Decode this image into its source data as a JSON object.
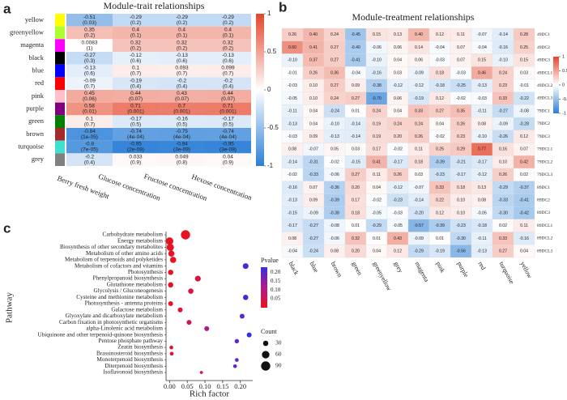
{
  "chart_data": [
    {
      "type": "heatmap",
      "label": "a",
      "title": "Module-trait relationships",
      "rows": [
        "yellow",
        "greenyellow",
        "magenta",
        "black",
        "blue",
        "red",
        "pink",
        "purple",
        "green",
        "brown",
        "turquoise",
        "grey"
      ],
      "columns": [
        "Berry fresh weight",
        "Glucose concentration",
        "Fructose concentration",
        "Hexose concentration"
      ],
      "values": [
        [
          -0.51,
          -0.29,
          -0.29,
          -0.29
        ],
        [
          0.35,
          0.4,
          0.4,
          0.4
        ],
        [
          0.0083,
          0.32,
          0.32,
          0.32
        ],
        [
          -0.27,
          -0.12,
          -0.13,
          -0.13
        ],
        [
          -0.13,
          0.1,
          0.093,
          0.099
        ],
        [
          -0.09,
          -0.19,
          -0.2,
          -0.2
        ],
        [
          0.45,
          0.44,
          0.43,
          0.44
        ],
        [
          0.58,
          0.71,
          0.7,
          0.71
        ],
        [
          0.1,
          -0.17,
          -0.16,
          -0.17
        ],
        [
          -0.84,
          -0.74,
          -0.75,
          -0.74
        ],
        [
          -0.8,
          -0.95,
          -0.94,
          -0.95
        ],
        [
          -0.2,
          0.033,
          0.049,
          0.04
        ]
      ],
      "cell_labels": [
        [
          "(0.03)",
          "(0.2)",
          "(0.2)",
          "(0.2)"
        ],
        [
          "(0.2)",
          "(0.1)",
          "(0.1)",
          "(0.1)"
        ],
        [
          "(1)",
          "(0.2)",
          "(0.2)",
          "(0.2)"
        ],
        [
          "(0.3)",
          "(0.6)",
          "(0.6)",
          "(0.6)"
        ],
        [
          "(0.6)",
          "(0.7)",
          "(0.7)",
          "(0.7)"
        ],
        [
          "(0.7)",
          "(0.4)",
          "(0.4)",
          "(0.4)"
        ],
        [
          "(0.06)",
          "(0.07)",
          "(0.07)",
          "(0.07)"
        ],
        [
          "(0.01)",
          "(0.001)",
          "(0.001)",
          "(0.001)"
        ],
        [
          "(0.7)",
          "(0.5)",
          "(0.5)",
          "(0.5)"
        ],
        [
          "(1e-05)",
          "(4e-04)",
          "(4e-04)",
          "(4e-04)"
        ],
        [
          "(7e-05)",
          "(2e-09)",
          "(3e-09)",
          "(3e-09)"
        ],
        [
          "(0.4)",
          "(0.9)",
          "(0.8)",
          "(0.9)"
        ]
      ],
      "clim": [
        -1,
        1
      ],
      "cticks": [
        -1,
        -0.5,
        0,
        0.5,
        1
      ]
    },
    {
      "type": "heatmap",
      "label": "b",
      "title": "Module-treatment relationships",
      "rows": [
        "49DC1",
        "49DC2",
        "49DC3",
        "49DCL1",
        "49DCL2",
        "49DCL3",
        "79DC1",
        "79DC2",
        "79DC3",
        "79DCL1",
        "79DCL2",
        "79DCL3",
        "89DC1",
        "89DC2",
        "89DC3",
        "89DCL1",
        "89DCL2",
        "89DCL3"
      ],
      "columns": [
        "black",
        "blue",
        "brown",
        "green",
        "greenyellow",
        "grey",
        "magenta",
        "pink",
        "purple",
        "red",
        "turquoise",
        "yellow"
      ],
      "values": [
        [
          0.26,
          0.4,
          0.24,
          -0.45,
          0.15,
          0.13,
          0.4,
          0.12,
          0.11,
          -0.07,
          -0.14,
          0.28
        ],
        [
          0.6,
          0.41,
          0.27,
          -0.4,
          -0.06,
          0.06,
          0.14,
          -0.04,
          0.07,
          -0.04,
          -0.16,
          0.25
        ],
        [
          -0.1,
          0.37,
          0.27,
          -0.41,
          -0.1,
          0.04,
          0.06,
          -0.03,
          0.07,
          0.15,
          -0.1,
          0.15
        ],
        [
          -0.01,
          0.26,
          0.36,
          -0.04,
          -0.16,
          0.03,
          -0.09,
          0.18,
          -0.03,
          0.46,
          0.24,
          0.03
        ],
        [
          -0.03,
          0.1,
          0.27,
          0.09,
          -0.38,
          -0.12,
          -0.12,
          -0.18,
          -0.25,
          -0.13,
          0.23,
          -0.01
        ],
        [
          -0.05,
          0.1,
          0.24,
          0.27,
          -0.7,
          0.06,
          -0.19,
          0.12,
          -0.02,
          -0.03,
          0.33,
          -0.22
        ],
        [
          -0.11,
          0.04,
          -0.24,
          0.01,
          0.24,
          0.04,
          0.33,
          0.27,
          0.35,
          -0.11,
          -0.27,
          -0.08
        ],
        [
          -0.13,
          0.04,
          -0.1,
          -0.14,
          0.19,
          0.24,
          0.24,
          0.04,
          0.26,
          0.08,
          -0.09,
          -0.28
        ],
        [
          -0.03,
          0.09,
          -0.13,
          -0.14,
          0.19,
          0.2,
          0.26,
          -0.02,
          0.23,
          -0.1,
          -0.26,
          0.12
        ],
        [
          0.08,
          -0.07,
          0.05,
          0.03,
          0.17,
          -0.02,
          0.11,
          0.25,
          0.29,
          0.77,
          0.16,
          0.07
        ],
        [
          -0.14,
          -0.31,
          -0.02,
          -0.15,
          0.41,
          -0.17,
          0.18,
          -0.39,
          -0.21,
          -0.17,
          0.1,
          0.42
        ],
        [
          -0.02,
          -0.33,
          -0.06,
          0.27,
          0.11,
          0.26,
          0.03,
          -0.23,
          -0.17,
          -0.12,
          0.26,
          0.02
        ],
        [
          -0.16,
          0.07,
          -0.36,
          0.2,
          0.04,
          -0.12,
          -0.07,
          0.33,
          0.18,
          0.13,
          -0.29,
          -0.37
        ],
        [
          -0.13,
          0.09,
          -0.39,
          0.17,
          -0.02,
          -0.23,
          -0.14,
          0.22,
          0.1,
          0.08,
          -0.33,
          -0.41
        ],
        [
          -0.15,
          -0.09,
          -0.38,
          0.18,
          -0.05,
          -0.03,
          -0.2,
          0.12,
          0.1,
          -0.05,
          -0.3,
          -0.42
        ],
        [
          -0.17,
          -0.27,
          -0.08,
          0.01,
          -0.29,
          -0.05,
          -0.57,
          -0.39,
          -0.23,
          -0.18,
          0.02,
          0.11
        ],
        [
          0.08,
          -0.27,
          -0.06,
          0.32,
          0.01,
          0.43,
          -0.09,
          0.01,
          -0.3,
          -0.11,
          0.33,
          -0.16
        ],
        [
          -0.04,
          -0.24,
          0.08,
          0.2,
          0.04,
          0.12,
          -0.29,
          -0.19,
          -0.56,
          -0.13,
          0.27,
          0.04
        ]
      ],
      "value_labels": [
        [
          "0.26",
          "0.40",
          "0.24",
          "-0.45",
          "0.15",
          "0.13",
          "0.40",
          "0.12",
          "0.11",
          "-0.07",
          "-0.14",
          "0.28"
        ],
        [
          "0.60",
          "0.41",
          "0.27",
          "-0.40",
          "-0.06",
          "0.06",
          "0.14",
          "-0.04",
          "0.07",
          "-0.04",
          "-0.16",
          "0.25"
        ],
        [
          "-0.10",
          "0.37",
          "0.27",
          "-0.41",
          "-0.10",
          "0.04",
          "0.06",
          "-0.03",
          "0.07",
          "0.15",
          "-0.10",
          "0.15"
        ],
        [
          "-0.01",
          "0.26",
          "0.36",
          "-0.04",
          "-0.16",
          "0.03",
          "-0.09",
          "0.18",
          "-0.03",
          "0.46",
          "0.24",
          "0.03"
        ],
        [
          "-0.03",
          "0.10",
          "0.27",
          "0.09",
          "-0.38",
          "-0.12",
          "-0.12",
          "-0.18",
          "-0.25",
          "-0.13",
          "0.23",
          "-0.01"
        ],
        [
          "-0.05",
          "0.10",
          "0.24",
          "0.27",
          "-0.70",
          "0.06",
          "-0.19",
          "0.12",
          "-0.02",
          "-0.03",
          "0.33",
          "-0.22"
        ],
        [
          "-0.11",
          "0.04",
          "-0.24",
          "0.01",
          "0.24",
          "0.04",
          "0.33",
          "0.27",
          "0.35",
          "-0.11",
          "-0.27",
          "-0.08"
        ],
        [
          "-0.13",
          "0.04",
          "-0.10",
          "-0.14",
          "0.19",
          "0.24",
          "0.24",
          "0.04",
          "0.26",
          "0.08",
          "-0.09",
          "-0.28"
        ],
        [
          "-0.03",
          "0.09",
          "-0.13",
          "-0.14",
          "0.19",
          "0.20",
          "0.26",
          "-0.02",
          "0.23",
          "-0.10",
          "-0.26",
          "0.12"
        ],
        [
          "0.08",
          "-0.07",
          "0.05",
          "0.03",
          "0.17",
          "-0.02",
          "0.11",
          "0.25",
          "0.29",
          "0.77",
          "0.16",
          "0.07"
        ],
        [
          "-0.14",
          "-0.31",
          "-0.02",
          "-0.15",
          "0.41",
          "-0.17",
          "0.18",
          "-0.39",
          "-0.21",
          "-0.17",
          "0.10",
          "0.42"
        ],
        [
          "-0.02",
          "-0.33",
          "-0.06",
          "0.27",
          "0.11",
          "0.26",
          "0.03",
          "-0.23",
          "-0.17",
          "-0.12",
          "0.26",
          "0.02"
        ],
        [
          "-0.16",
          "0.07",
          "-0.36",
          "0.20",
          "0.04",
          "-0.12",
          "-0.07",
          "0.33",
          "0.18",
          "0.13",
          "-0.29",
          "-0.37"
        ],
        [
          "-0.13",
          "0.09",
          "-0.39",
          "0.17",
          "-0.02",
          "-0.23",
          "-0.14",
          "0.22",
          "0.10",
          "0.08",
          "-0.33",
          "-0.41"
        ],
        [
          "-0.15",
          "-0.09",
          "-0.38",
          "0.18",
          "-0.05",
          "-0.03",
          "-0.20",
          "0.12",
          "0.10",
          "-0.05",
          "-0.30",
          "-0.42"
        ],
        [
          "-0.17",
          "-0.27",
          "-0.08",
          "0.01",
          "-0.29",
          "-0.05",
          "-0.57",
          "-0.39",
          "-0.23",
          "-0.18",
          "0.02",
          "0.11"
        ],
        [
          "0.08",
          "-0.27",
          "-0.06",
          "0.32",
          "0.01",
          "0.43",
          "-0.09",
          "0.01",
          "-0.30",
          "-0.11",
          "0.33",
          "-0.16"
        ],
        [
          "-0.04",
          "-0.24",
          "0.08",
          "0.20",
          "0.04",
          "0.12",
          "-0.29",
          "-0.19",
          "-0.56",
          "-0.13",
          "0.27",
          "0.04"
        ]
      ],
      "clim": [
        -1,
        1
      ],
      "cticks": [
        -1,
        -0.5,
        0,
        0.5,
        1
      ]
    },
    {
      "type": "dotplot",
      "label": "c",
      "x_label": "Rich factor",
      "y_label": "Pathway",
      "categories": [
        "Carbohydrate metabolism",
        "Energy metabolism",
        "Biosynthesis of other secondary metabolites",
        "Metabolism of other amino acids",
        "Metabolism of terpenoids and polyketides",
        "Metabolism of cofactors and vitamins",
        "Photosynthesis",
        "Phenylpropanoid biosynthesis",
        "Glutathione metabolism",
        "Glycolysis / Gluconeogenesis",
        "Cysteine and methionine metabolism",
        "Photosynthesis - antenna proteins",
        "Galactose metabolism",
        "Glyoxylate and dicarboxylate metabolism",
        "Carbon fixation in photosynthetic organisms",
        "alpha-Linolenic acid metabolism",
        "Ubiquinone and other terpenoid-quinone biosynthesis",
        "Pentose phosphate pathway",
        "Zeatin biosynthesis",
        "Brassinosteroid biosynthesis",
        "Monoterpenoid biosynthesis",
        "Diterpenoid biosynthesis",
        "Isoflavonoid biosynthesis"
      ],
      "x": [
        0.045,
        0.0,
        0.002,
        0.005,
        0.01,
        0.215,
        0.003,
        0.08,
        0.003,
        0.06,
        0.215,
        0.003,
        0.03,
        0.205,
        0.055,
        0.105,
        0.225,
        0.19,
        0.005,
        0.006,
        0.19,
        0.185,
        0.09
      ],
      "pvalue": [
        0.001,
        0.001,
        0.001,
        0.002,
        0.002,
        0.22,
        0.005,
        0.03,
        0.003,
        0.04,
        0.22,
        0.005,
        0.02,
        0.2,
        0.05,
        0.12,
        0.23,
        0.19,
        0.01,
        0.01,
        0.2,
        0.19,
        0.03
      ],
      "count": [
        90,
        60,
        55,
        40,
        40,
        35,
        30,
        35,
        30,
        30,
        30,
        25,
        25,
        25,
        25,
        25,
        25,
        20,
        15,
        15,
        15,
        15,
        10
      ],
      "xlim": [
        -0.01,
        0.235
      ],
      "xticks": [
        {
          "value": 0,
          "label": "0.00"
        },
        0.05,
        {
          "value": 0.1,
          "label": "0.10"
        },
        0.15,
        {
          "value": 0.2,
          "label": "0.20"
        }
      ],
      "color_title": "Pvalue",
      "clim": [
        0,
        0.23
      ],
      "cticks": [
        0.05,
        {
          "value": 0.1,
          "label": "0.10"
        },
        0.15,
        {
          "value": 0.2,
          "label": "0.20"
        }
      ],
      "size_title": "Count",
      "size_ticks": [
        30,
        60,
        90
      ]
    }
  ]
}
